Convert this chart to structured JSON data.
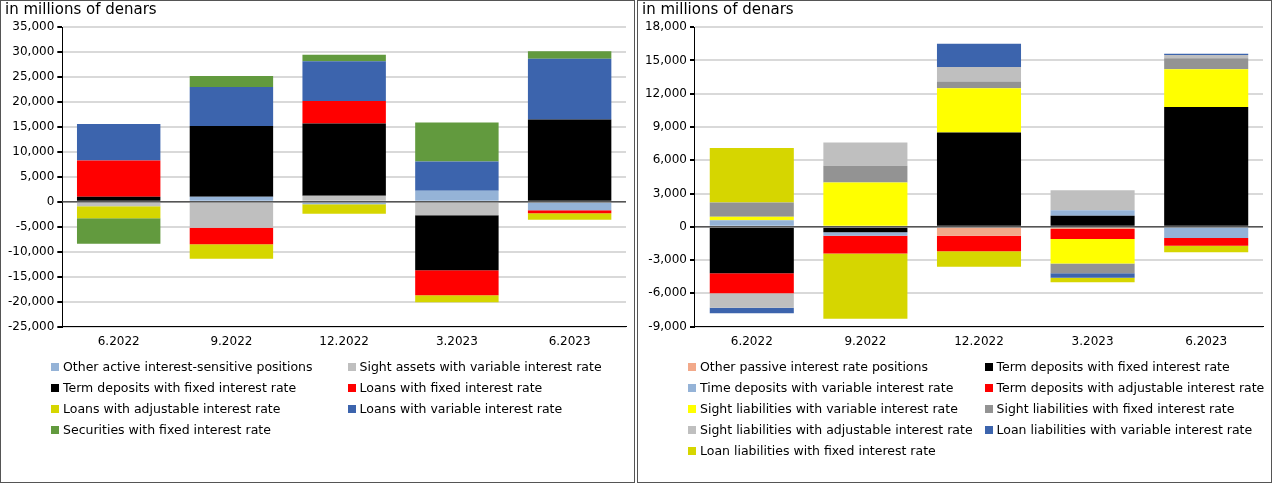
{
  "chart_data": [
    {
      "type": "bar",
      "title": "in millions of denars",
      "stacked": true,
      "legend": "bottom",
      "grid": "y",
      "categories": [
        "6.2022",
        "9.2022",
        "12.2022",
        "3.2023",
        "6.2023"
      ],
      "ylim": [
        -25000,
        35000
      ],
      "yticks": [
        {
          "value": -25000,
          "label": "-25,000"
        },
        {
          "value": -20000,
          "label": "-20,000"
        },
        {
          "value": -15000,
          "label": "-15,000"
        },
        {
          "value": -10000,
          "label": "-10,000"
        },
        {
          "value": -5000,
          "label": "-5,000"
        },
        0,
        {
          "value": 5000,
          "label": "5,000"
        },
        {
          "value": 10000,
          "label": "10,000"
        },
        {
          "value": 15000,
          "label": "15,000"
        },
        {
          "value": 20000,
          "label": "20,000"
        },
        {
          "value": 25000,
          "label": "25,000"
        },
        {
          "value": 30000,
          "label": "30,000"
        },
        {
          "value": 35000,
          "label": "35,000"
        }
      ],
      "series": [
        {
          "name": "Other active interest-sensitive positions",
          "color": "#95b3d7",
          "values": [
            0,
            1000,
            -500,
            2200,
            -1700
          ]
        },
        {
          "name": "Sight assets with variable interest rate",
          "color": "#bfbfbf",
          "values": [
            -900,
            -5200,
            1200,
            -2700,
            0
          ]
        },
        {
          "name": "Term deposits with fixed interest rate",
          "color": "#000000",
          "values": [
            1000,
            14200,
            14500,
            -11000,
            16500
          ]
        },
        {
          "name": "Loans with fixed interest rate",
          "color": "#ff0000",
          "values": [
            7300,
            -3300,
            4500,
            -5000,
            -600
          ]
        },
        {
          "name": "Loans with adjustable interest rate",
          "color": "#d6d600",
          "values": [
            -2400,
            -2900,
            -1900,
            -1400,
            -1300
          ]
        },
        {
          "name": "Loans with variable interest rate",
          "color": "#3c64ad",
          "values": [
            7300,
            7800,
            8000,
            5900,
            12200
          ]
        },
        {
          "name": "Securities with fixed interest rate",
          "color": "#629a3e",
          "values": [
            -5100,
            2200,
            1300,
            7800,
            1500
          ]
        }
      ]
    },
    {
      "type": "bar",
      "title": "in millions of denars",
      "stacked": true,
      "legend": "bottom",
      "grid": "y",
      "categories": [
        "6.2022",
        "9.2022",
        "12.2022",
        "3.2023",
        "6.2023"
      ],
      "ylim": [
        -9000,
        18000
      ],
      "yticks": [
        {
          "value": -9000,
          "label": "-9,000"
        },
        {
          "value": -6000,
          "label": "-6,000"
        },
        {
          "value": -3000,
          "label": "-3,000"
        },
        0,
        {
          "value": 3000,
          "label": "3,000"
        },
        {
          "value": 6000,
          "label": "6,000"
        },
        {
          "value": 9000,
          "label": "9,000"
        },
        {
          "value": 12000,
          "label": "12,000"
        },
        {
          "value": 15000,
          "label": "15,000"
        },
        {
          "value": 18000,
          "label": "18,000"
        }
      ],
      "series": [
        {
          "name": "Other passive interest rate positions",
          "color": "#f2a98a",
          "values": [
            0,
            null,
            -800,
            -200,
            0
          ]
        },
        {
          "name": "Term deposits with fixed interest rate",
          "color": "#000000",
          "values": [
            -4200,
            -500,
            8500,
            1000,
            10800
          ]
        },
        {
          "name": "Time deposits with variable interest rate",
          "color": "#95b3d7",
          "values": [
            600,
            -300,
            null,
            500,
            -1000
          ]
        },
        {
          "name": "Term deposits with adjustable interest rate",
          "color": "#ff0000",
          "values": [
            -1800,
            -1600,
            -1400,
            -900,
            -700
          ]
        },
        {
          "name": "Sight liabilities with variable interest rate",
          "color": "#ffff00",
          "values": [
            300,
            4000,
            4000,
            -2200,
            3400
          ]
        },
        {
          "name": "Sight liabilities with fixed interest rate",
          "color": "#939393",
          "values": [
            1300,
            1500,
            600,
            -900,
            1000
          ]
        },
        {
          "name": "Sight liabilities with adjustable interest rate",
          "color": "#bfbfbf",
          "values": [
            -1300,
            2100,
            1300,
            1800,
            300
          ]
        },
        {
          "name": "Loan liabilities with variable interest rate",
          "color": "#3c64ad",
          "values": [
            -500,
            0,
            2100,
            -400,
            100
          ]
        },
        {
          "name": "Loan liabilities with fixed interest rate",
          "color": "#d6d600",
          "values": [
            4900,
            -5900,
            -1400,
            -400,
            -600
          ]
        }
      ]
    }
  ]
}
